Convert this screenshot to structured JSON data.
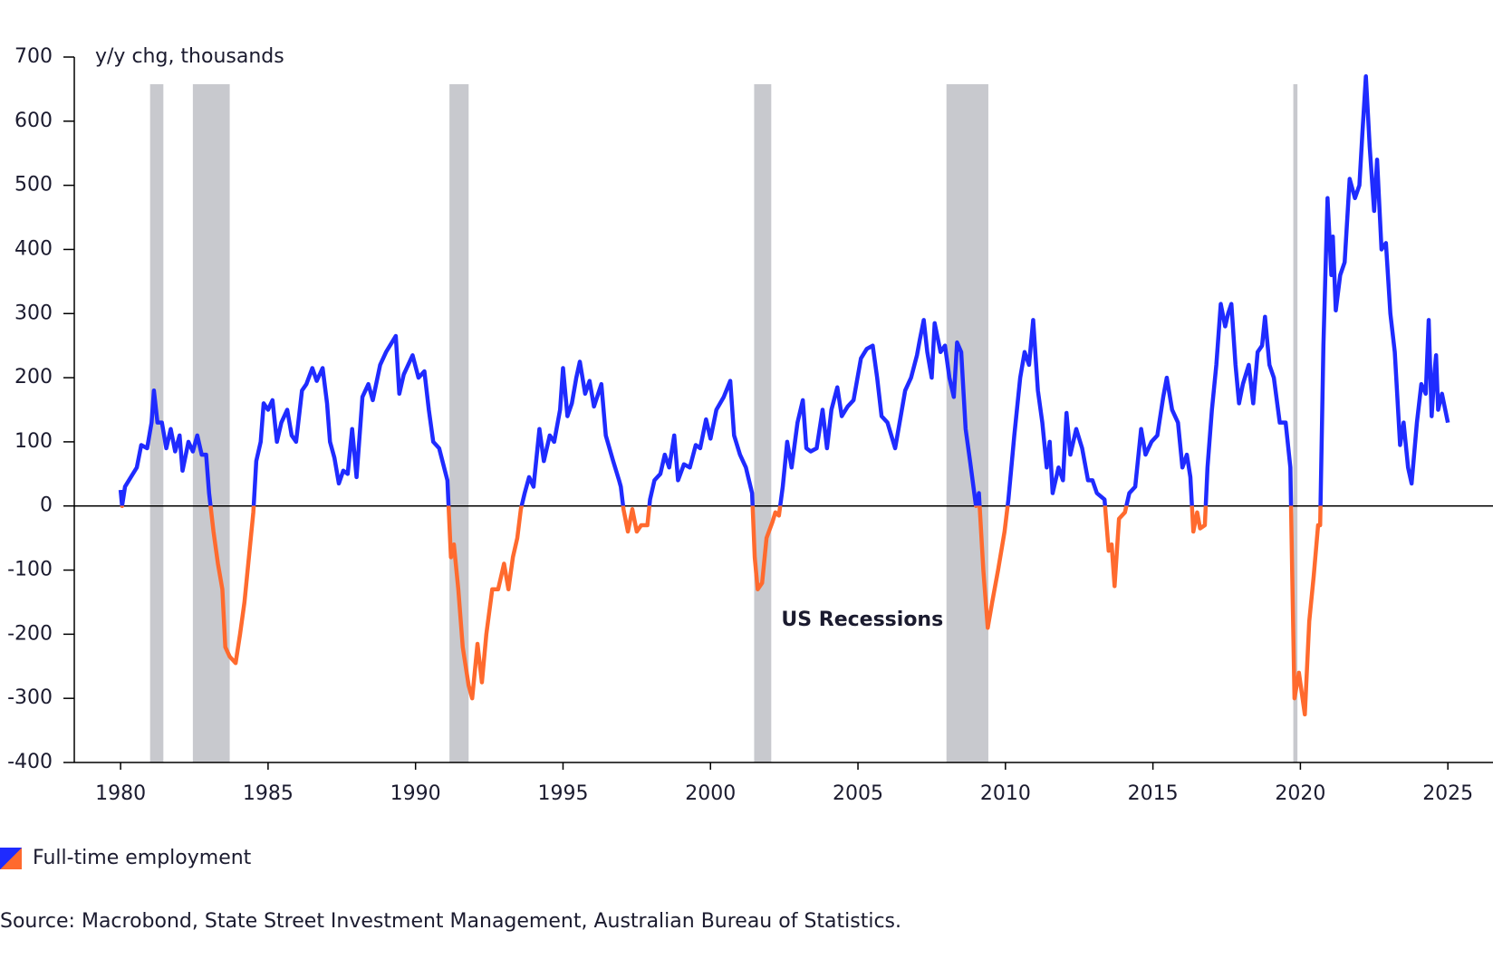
{
  "chart_data": {
    "type": "line",
    "ylabel": "y/y chg, thousands",
    "source": "Source: Macrobond, State Street Investment Management, Australian Bureau of Statistics.",
    "xlim": [
      1978.43,
      2026.53
    ],
    "ylim": [
      -400,
      700
    ],
    "xticks": [
      1980,
      1985,
      1990,
      1995,
      2000,
      2005,
      2010,
      2015,
      2020,
      2025
    ],
    "yticks": [
      -400,
      -300,
      -200,
      -100,
      0,
      100,
      200,
      300,
      400,
      500,
      600,
      700
    ],
    "zero_line": true,
    "recessions": {
      "label": "US Recessions",
      "color": "#c8c9ce",
      "periods": [
        [
          1981.0,
          1981.45
        ],
        [
          1982.45,
          1983.7
        ],
        [
          1991.15,
          1991.8
        ],
        [
          2001.48,
          2002.06
        ],
        [
          2008.0,
          2009.42
        ],
        [
          2019.76,
          2019.9
        ]
      ]
    },
    "x": [
      1980.0,
      1980.05,
      1980.15,
      1980.35,
      1980.55,
      1980.7,
      1980.9,
      1981.05,
      1981.13,
      1981.25,
      1981.4,
      1981.55,
      1981.7,
      1981.85,
      1982.0,
      1982.1,
      1982.3,
      1982.45,
      1982.6,
      1982.75,
      1982.9,
      1983.0,
      1983.15,
      1983.3,
      1983.45,
      1983.55,
      1983.7,
      1983.9,
      1984.05,
      1984.2,
      1984.35,
      1984.5,
      1984.6,
      1984.75,
      1984.85,
      1985.0,
      1985.15,
      1985.3,
      1985.45,
      1985.65,
      1985.8,
      1985.95,
      1986.15,
      1986.3,
      1986.5,
      1986.65,
      1986.85,
      1987.0,
      1987.1,
      1987.25,
      1987.4,
      1987.55,
      1987.7,
      1987.85,
      1988.0,
      1988.2,
      1988.4,
      1988.55,
      1988.8,
      1989.0,
      1989.33,
      1989.45,
      1989.6,
      1989.9,
      1990.1,
      1990.3,
      1990.45,
      1990.6,
      1990.8,
      1991.08,
      1991.2,
      1991.3,
      1991.45,
      1991.6,
      1991.8,
      1991.92,
      1992.1,
      1992.25,
      1992.4,
      1992.6,
      1992.8,
      1993.0,
      1993.15,
      1993.3,
      1993.45,
      1993.57,
      1993.7,
      1993.85,
      1994.0,
      1994.2,
      1994.35,
      1994.55,
      1994.7,
      1994.9,
      1995.0,
      1995.15,
      1995.3,
      1995.45,
      1995.57,
      1995.75,
      1995.9,
      1996.05,
      1996.3,
      1996.45,
      1996.7,
      1996.9,
      1996.96,
      1997.05,
      1997.2,
      1997.35,
      1997.5,
      1997.65,
      1997.86,
      1997.95,
      1998.1,
      1998.3,
      1998.45,
      1998.6,
      1998.77,
      1998.9,
      1999.1,
      1999.3,
      1999.5,
      1999.65,
      1999.85,
      2000.0,
      2000.2,
      2000.45,
      2000.67,
      2000.8,
      2001.0,
      2001.2,
      2001.41,
      2001.5,
      2001.6,
      2001.75,
      2001.9,
      2002.1,
      2002.2,
      2002.32,
      2002.45,
      2002.6,
      2002.75,
      2002.95,
      2003.13,
      2003.25,
      2003.4,
      2003.6,
      2003.8,
      2003.95,
      2004.1,
      2004.3,
      2004.45,
      2004.65,
      2004.85,
      2005.1,
      2005.3,
      2005.5,
      2005.65,
      2005.8,
      2006.0,
      2006.26,
      2006.45,
      2006.6,
      2006.8,
      2007.0,
      2007.1,
      2007.23,
      2007.35,
      2007.5,
      2007.6,
      2007.8,
      2007.95,
      2008.1,
      2008.25,
      2008.36,
      2008.5,
      2008.65,
      2008.8,
      2009.0,
      2009.1,
      2009.25,
      2009.4,
      2009.55,
      2009.75,
      2009.97,
      2010.1,
      2010.3,
      2010.5,
      2010.65,
      2010.8,
      2010.94,
      2011.1,
      2011.25,
      2011.4,
      2011.5,
      2011.6,
      2011.8,
      2011.95,
      2012.07,
      2012.2,
      2012.4,
      2012.6,
      2012.8,
      2012.95,
      2013.1,
      2013.36,
      2013.5,
      2013.6,
      2013.7,
      2013.85,
      2014.05,
      2014.2,
      2014.4,
      2014.6,
      2014.75,
      2014.95,
      2015.15,
      2015.35,
      2015.47,
      2015.65,
      2015.85,
      2016.0,
      2016.15,
      2016.27,
      2016.37,
      2016.5,
      2016.6,
      2016.76,
      2016.85,
      2017.0,
      2017.15,
      2017.3,
      2017.45,
      2017.55,
      2017.66,
      2017.8,
      2017.92,
      2018.05,
      2018.25,
      2018.4,
      2018.55,
      2018.7,
      2018.8,
      2018.95,
      2019.1,
      2019.3,
      2019.5,
      2019.66,
      2019.72,
      2019.8,
      2019.95,
      2020.15,
      2020.3,
      2020.45,
      2020.6,
      2020.67,
      2020.78,
      2020.92,
      2021.05,
      2021.1,
      2021.2,
      2021.35,
      2021.5,
      2021.67,
      2021.85,
      2022.0,
      2022.1,
      2022.22,
      2022.35,
      2022.5,
      2022.6,
      2022.75,
      2022.9,
      2023.05,
      2023.2,
      2023.38,
      2023.5,
      2023.65,
      2023.77,
      2023.95,
      2024.1,
      2024.25,
      2024.35,
      2024.45,
      2024.55,
      2024.6,
      2024.67,
      2024.8,
      2025.0
    ],
    "series": [
      {
        "name": "Full-time employment",
        "color": "#1f2bff",
        "negative_color": "#ff6a2e",
        "values": [
          25,
          0,
          30,
          45,
          60,
          95,
          90,
          130,
          180,
          130,
          130,
          90,
          120,
          85,
          110,
          55,
          100,
          85,
          110,
          80,
          80,
          20,
          -40,
          -90,
          -130,
          -220,
          -235,
          -245,
          -200,
          -150,
          -80,
          -10,
          70,
          100,
          160,
          150,
          165,
          100,
          130,
          150,
          110,
          100,
          180,
          190,
          215,
          195,
          215,
          160,
          100,
          75,
          35,
          55,
          50,
          120,
          45,
          170,
          190,
          165,
          220,
          240,
          265,
          175,
          205,
          235,
          200,
          210,
          150,
          100,
          90,
          40,
          -80,
          -60,
          -130,
          -220,
          -280,
          -300,
          -215,
          -275,
          -200,
          -130,
          -130,
          -90,
          -130,
          -80,
          -50,
          -5,
          20,
          45,
          30,
          120,
          70,
          110,
          100,
          150,
          215,
          140,
          160,
          200,
          225,
          175,
          195,
          155,
          190,
          110,
          70,
          40,
          30,
          -5,
          -40,
          -5,
          -40,
          -30,
          -30,
          10,
          40,
          50,
          80,
          60,
          110,
          40,
          65,
          60,
          95,
          90,
          135,
          105,
          150,
          170,
          195,
          110,
          80,
          60,
          20,
          -80,
          -130,
          -120,
          -50,
          -25,
          -10,
          -15,
          30,
          100,
          60,
          130,
          165,
          90,
          85,
          90,
          150,
          90,
          150,
          185,
          140,
          155,
          165,
          230,
          245,
          250,
          200,
          140,
          130,
          90,
          140,
          180,
          200,
          235,
          260,
          290,
          240,
          200,
          285,
          240,
          250,
          200,
          170,
          255,
          240,
          120,
          70,
          0,
          20,
          -100,
          -190,
          -150,
          -100,
          -40,
          10,
          110,
          200,
          240,
          220,
          290,
          180,
          130,
          60,
          100,
          20,
          60,
          40,
          145,
          80,
          120,
          90,
          40,
          40,
          20,
          10,
          -70,
          -60,
          -125,
          -20,
          -10,
          20,
          30,
          120,
          80,
          100,
          110,
          170,
          200,
          150,
          130,
          60,
          80,
          45,
          -40,
          -10,
          -35,
          -30,
          60,
          150,
          220,
          315,
          280,
          300,
          315,
          220,
          160,
          190,
          220,
          160,
          240,
          250,
          295,
          220,
          200,
          130,
          130,
          60,
          -100,
          -300,
          -260,
          -325,
          -180,
          -110,
          -30,
          -30,
          250,
          480,
          360,
          420,
          305,
          360,
          380,
          510,
          480,
          500,
          580,
          670,
          560,
          460,
          540,
          400,
          410,
          300,
          240,
          95,
          130,
          60,
          35,
          130,
          190,
          175,
          290,
          140,
          210,
          235,
          150,
          175,
          130
        ]
      }
    ]
  }
}
